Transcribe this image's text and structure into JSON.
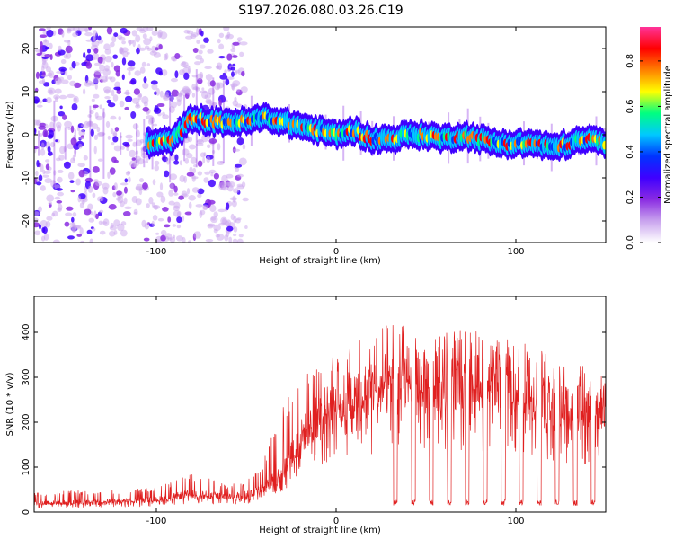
{
  "title": "S197.2026.080.03.26.C19",
  "colors": {
    "snr_line": "#e02020",
    "colormap": [
      "#ffffff",
      "#c9a3ee",
      "#8a2be2",
      "#3f00ff",
      "#0033ff",
      "#00c8ff",
      "#00ff80",
      "#ffff00",
      "#ff8000",
      "#ff0000",
      "#ff3399"
    ]
  },
  "chart_data": [
    {
      "type": "heatmap",
      "title": "S197.2026.080.03.26.C19",
      "xlabel": "Height of straight line (km)",
      "ylabel": "Frequency (Hz)",
      "xlim": [
        -168,
        150
      ],
      "ylim": [
        -25,
        25
      ],
      "xticks": [
        -100,
        0,
        100
      ],
      "xtick_labels": [
        "-100",
        "0",
        "100"
      ],
      "yticks": [
        -20,
        -10,
        0,
        10,
        20
      ],
      "ytick_labels": [
        "-20",
        "-10",
        "0",
        "10",
        "20"
      ],
      "colorbar": {
        "label": "Normalized spectral amplitude",
        "range": [
          0,
          0.95
        ],
        "ticks": [
          0,
          0.2,
          0.4,
          0.6,
          0.8
        ],
        "tick_labels": [
          "0.0",
          "0.2",
          "0.4",
          "0.6",
          "0.8"
        ]
      },
      "ridge": {
        "x": [
          -100,
          -90,
          -80,
          -70,
          -60,
          -50,
          -40,
          -30,
          -20,
          -10,
          0,
          10,
          20,
          30,
          40,
          50,
          60,
          70,
          80,
          90,
          100,
          110,
          120,
          130,
          140,
          150
        ],
        "frequency": [
          -2,
          -1,
          4,
          3,
          3,
          3,
          4,
          3,
          2,
          1,
          0,
          1,
          -1,
          -1,
          0,
          0,
          -1,
          0,
          -1,
          -2,
          -2,
          -2,
          -3,
          -2,
          -1,
          -2
        ]
      },
      "noise_region_x": [
        -168,
        -50
      ]
    },
    {
      "type": "line",
      "xlabel": "Height of straight line (km)",
      "ylabel": "SNR (10 * v/v)",
      "xlim": [
        -168,
        150
      ],
      "ylim": [
        0,
        480
      ],
      "xticks": [
        -100,
        0,
        100
      ],
      "xtick_labels": [
        "-100",
        "0",
        "100"
      ],
      "yticks": [
        0,
        100,
        200,
        300,
        400
      ],
      "ytick_labels": [
        "0",
        "100",
        "200",
        "300",
        "400"
      ],
      "series": [
        {
          "name": "SNR",
          "x": [
            -168,
            -140,
            -120,
            -100,
            -90,
            -80,
            -70,
            -60,
            -50,
            -40,
            -30,
            -20,
            -10,
            0,
            10,
            20,
            30,
            40,
            50,
            60,
            70,
            80,
            90,
            100,
            110,
            120,
            130,
            140,
            150
          ],
          "envelope": [
            20,
            22,
            25,
            28,
            35,
            42,
            38,
            35,
            40,
            55,
            90,
            170,
            220,
            250,
            270,
            280,
            300,
            310,
            300,
            300,
            290,
            300,
            290,
            280,
            270,
            250,
            240,
            230,
            240
          ],
          "peak": [
            45,
            48,
            50,
            55,
            70,
            85,
            75,
            60,
            70,
            120,
            250,
            300,
            330,
            350,
            380,
            400,
            420,
            420,
            410,
            400,
            410,
            400,
            390,
            380,
            370,
            360,
            340,
            320,
            310
          ],
          "dropout_x": [
            33,
            43,
            53,
            63,
            73,
            83,
            93,
            103,
            113,
            123,
            133,
            143
          ],
          "dropout_value": 15
        }
      ]
    }
  ]
}
